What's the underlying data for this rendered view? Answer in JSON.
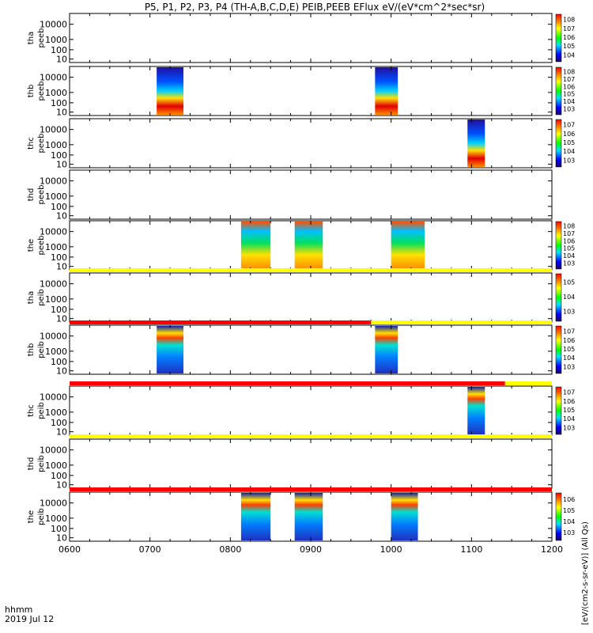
{
  "chart_data": {
    "type": "heatmap",
    "title": "P5, P1, P2, P3, P4 (TH-A,B,C,D,E) PEIB,PEEB EFlux eV/(eV*cm^2*sec*sr)",
    "x_axis": {
      "label": "hhmm",
      "date": "2019 Jul 12",
      "range": [
        "0600",
        "1200"
      ],
      "ticks": [
        "0600",
        "0700",
        "0800",
        "0900",
        "1000",
        "1100",
        "1200"
      ]
    },
    "y_axis": {
      "scale": "log",
      "ticks": [
        "10",
        "100",
        "1000",
        "10000"
      ]
    },
    "colorbar_label": "[eV/(cm2-s-sr-eV)] (All Qs)",
    "colormap": "rainbow (purple-blue-cyan-green-yellow-orange-red)",
    "panels": [
      {
        "probe": "tha",
        "product": "peeb",
        "colorbar_ticks": [
          "10^4",
          "10^5",
          "10^6",
          "10^7",
          "10^8"
        ],
        "data_intervals": []
      },
      {
        "probe": "thb",
        "product": "peeb",
        "colorbar_ticks": [
          "10^3",
          "10^4",
          "10^5",
          "10^6",
          "10^7",
          "10^8"
        ],
        "data_intervals": [
          [
            "0705",
            "0725"
          ],
          [
            "0948",
            "1005"
          ]
        ]
      },
      {
        "probe": "thc",
        "product": "peeb",
        "colorbar_ticks": [
          "10^3",
          "10^4",
          "10^5",
          "10^6",
          "10^7"
        ],
        "data_intervals": [
          [
            "1057",
            "1070"
          ]
        ]
      },
      {
        "probe": "thd",
        "product": "peeb",
        "colorbar_ticks": [],
        "data_intervals": []
      },
      {
        "probe": "the",
        "product": "peeb",
        "colorbar_ticks": [
          "10^3",
          "10^4",
          "10^5",
          "10^6",
          "10^7",
          "10^8"
        ],
        "data_intervals": [
          [
            "0808",
            "0830"
          ],
          [
            "0848",
            "0909"
          ],
          [
            "1000",
            "1025"
          ]
        ]
      },
      {
        "probe": "tha",
        "product": "peib",
        "colorbar_ticks": [
          "10^3",
          "10^4",
          "10^5"
        ],
        "data_intervals": []
      },
      {
        "probe": "thb",
        "product": "peib",
        "colorbar_ticks": [
          "10^3",
          "10^4",
          "10^5",
          "10^6",
          "10^7"
        ],
        "data_intervals": [
          [
            "0705",
            "0725"
          ],
          [
            "0948",
            "1005"
          ]
        ]
      },
      {
        "probe": "thc",
        "product": "peib",
        "colorbar_ticks": [
          "10^3",
          "10^4",
          "10^5",
          "10^6",
          "10^7"
        ],
        "data_intervals": [
          [
            "1057",
            "1070"
          ]
        ]
      },
      {
        "probe": "thd",
        "product": "peib",
        "colorbar_ticks": [],
        "data_intervals": []
      },
      {
        "probe": "the",
        "product": "peib",
        "colorbar_ticks": [
          "10^3",
          "10^4",
          "10^5",
          "10^6"
        ],
        "data_intervals": [
          [
            "0808",
            "0830"
          ],
          [
            "0848",
            "0909"
          ],
          [
            "1000",
            "1020"
          ]
        ]
      }
    ],
    "mode_bars": [
      {
        "after_panel": 5,
        "segments": [
          {
            "color": "#ffff00",
            "from": "0600",
            "to": "1200"
          }
        ]
      },
      {
        "after_panel": 6,
        "segments": [
          {
            "color": "#ff0000",
            "from": "0600",
            "to": "0945"
          },
          {
            "color": "#ffff00",
            "from": "0945",
            "to": "1200"
          }
        ]
      },
      {
        "after_panel": 7,
        "segments": [
          {
            "color": "#ff0000",
            "from": "0600",
            "to": "1085"
          },
          {
            "color": "#ffff00",
            "from": "1085",
            "to": "1200"
          }
        ]
      },
      {
        "after_panel": 8,
        "segments": [
          {
            "color": "#ffff00",
            "from": "0600",
            "to": "1200"
          }
        ]
      },
      {
        "after_panel": 9,
        "segments": [
          {
            "color": "#ff0000",
            "from": "0600",
            "to": "1200"
          }
        ]
      }
    ]
  }
}
